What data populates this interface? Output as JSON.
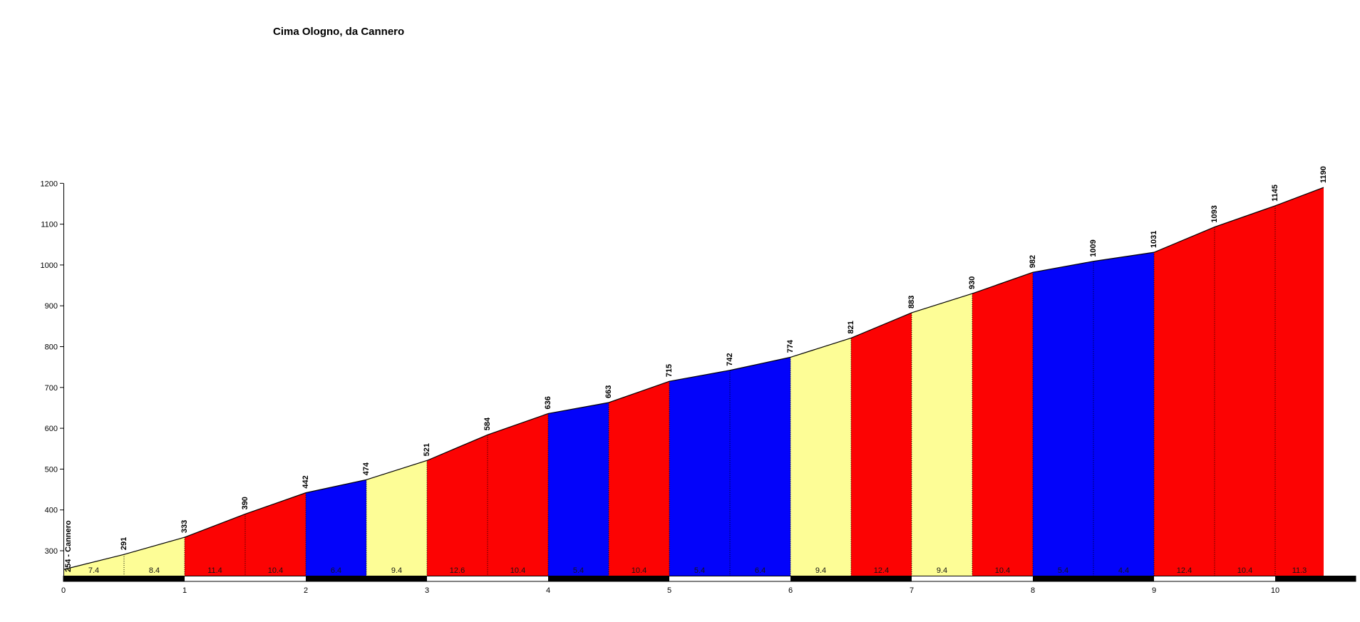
{
  "chart_data": {
    "type": "area",
    "title": "Cima Ologno, da Cannero",
    "x_unit": "km",
    "y_unit": "m",
    "x_ticks": [
      0,
      1,
      2,
      3,
      4,
      5,
      6,
      7,
      8,
      9,
      10
    ],
    "y_ticks": [
      300,
      400,
      500,
      600,
      700,
      800,
      900,
      1000,
      1100,
      1200
    ],
    "ylim_drawn": [
      240,
      1245
    ],
    "grid": false,
    "legend": false,
    "start_label": "254 - Cannero",
    "start_elevation": 254,
    "summit_elevation": 1190,
    "total_km": 10.4,
    "segments": [
      {
        "from_km": 0.0,
        "to_km": 0.5,
        "ele_from": 254,
        "ele_to": 291,
        "gradient": "7.4",
        "color": "yellow"
      },
      {
        "from_km": 0.5,
        "to_km": 1.0,
        "ele_from": 291,
        "ele_to": 333,
        "gradient": "8.4",
        "color": "yellow"
      },
      {
        "from_km": 1.0,
        "to_km": 1.5,
        "ele_from": 333,
        "ele_to": 390,
        "gradient": "11.4",
        "color": "red"
      },
      {
        "from_km": 1.5,
        "to_km": 2.0,
        "ele_from": 390,
        "ele_to": 442,
        "gradient": "10.4",
        "color": "red"
      },
      {
        "from_km": 2.0,
        "to_km": 2.5,
        "ele_from": 442,
        "ele_to": 474,
        "gradient": "6.4",
        "color": "blue"
      },
      {
        "from_km": 2.5,
        "to_km": 3.0,
        "ele_from": 474,
        "ele_to": 521,
        "gradient": "9.4",
        "color": "yellow"
      },
      {
        "from_km": 3.0,
        "to_km": 3.5,
        "ele_from": 521,
        "ele_to": 584,
        "gradient": "12.6",
        "color": "red"
      },
      {
        "from_km": 3.5,
        "to_km": 4.0,
        "ele_from": 584,
        "ele_to": 636,
        "gradient": "10.4",
        "color": "red"
      },
      {
        "from_km": 4.0,
        "to_km": 4.5,
        "ele_from": 636,
        "ele_to": 663,
        "gradient": "5.4",
        "color": "blue"
      },
      {
        "from_km": 4.5,
        "to_km": 5.0,
        "ele_from": 663,
        "ele_to": 715,
        "gradient": "10.4",
        "color": "red"
      },
      {
        "from_km": 5.0,
        "to_km": 5.5,
        "ele_from": 715,
        "ele_to": 742,
        "gradient": "5.4",
        "color": "blue"
      },
      {
        "from_km": 5.5,
        "to_km": 6.0,
        "ele_from": 742,
        "ele_to": 774,
        "gradient": "6.4",
        "color": "blue"
      },
      {
        "from_km": 6.0,
        "to_km": 6.5,
        "ele_from": 774,
        "ele_to": 821,
        "gradient": "9.4",
        "color": "yellow"
      },
      {
        "from_km": 6.5,
        "to_km": 7.0,
        "ele_from": 821,
        "ele_to": 883,
        "gradient": "12.4",
        "color": "red"
      },
      {
        "from_km": 7.0,
        "to_km": 7.5,
        "ele_from": 883,
        "ele_to": 930,
        "gradient": "9.4",
        "color": "yellow"
      },
      {
        "from_km": 7.5,
        "to_km": 8.0,
        "ele_from": 930,
        "ele_to": 982,
        "gradient": "10.4",
        "color": "red"
      },
      {
        "from_km": 8.0,
        "to_km": 8.5,
        "ele_from": 982,
        "ele_to": 1009,
        "gradient": "5.4",
        "color": "blue"
      },
      {
        "from_km": 8.5,
        "to_km": 9.0,
        "ele_from": 1009,
        "ele_to": 1031,
        "gradient": "4.4",
        "color": "blue"
      },
      {
        "from_km": 9.0,
        "to_km": 9.5,
        "ele_from": 1031,
        "ele_to": 1093,
        "gradient": "12.4",
        "color": "red"
      },
      {
        "from_km": 9.5,
        "to_km": 10.0,
        "ele_from": 1093,
        "ele_to": 1145,
        "gradient": "10.4",
        "color": "red"
      },
      {
        "from_km": 10.0,
        "to_km": 10.4,
        "ele_from": 1145,
        "ele_to": 1190,
        "gradient": "11.3",
        "color": "red"
      }
    ],
    "palette": {
      "yellow": "#FDFD96",
      "red": "#FC0303",
      "blue": "#0303FA",
      "outline": "#000000",
      "km_bar_black": "#000000",
      "km_bar_white": "#FFFFFF"
    }
  }
}
